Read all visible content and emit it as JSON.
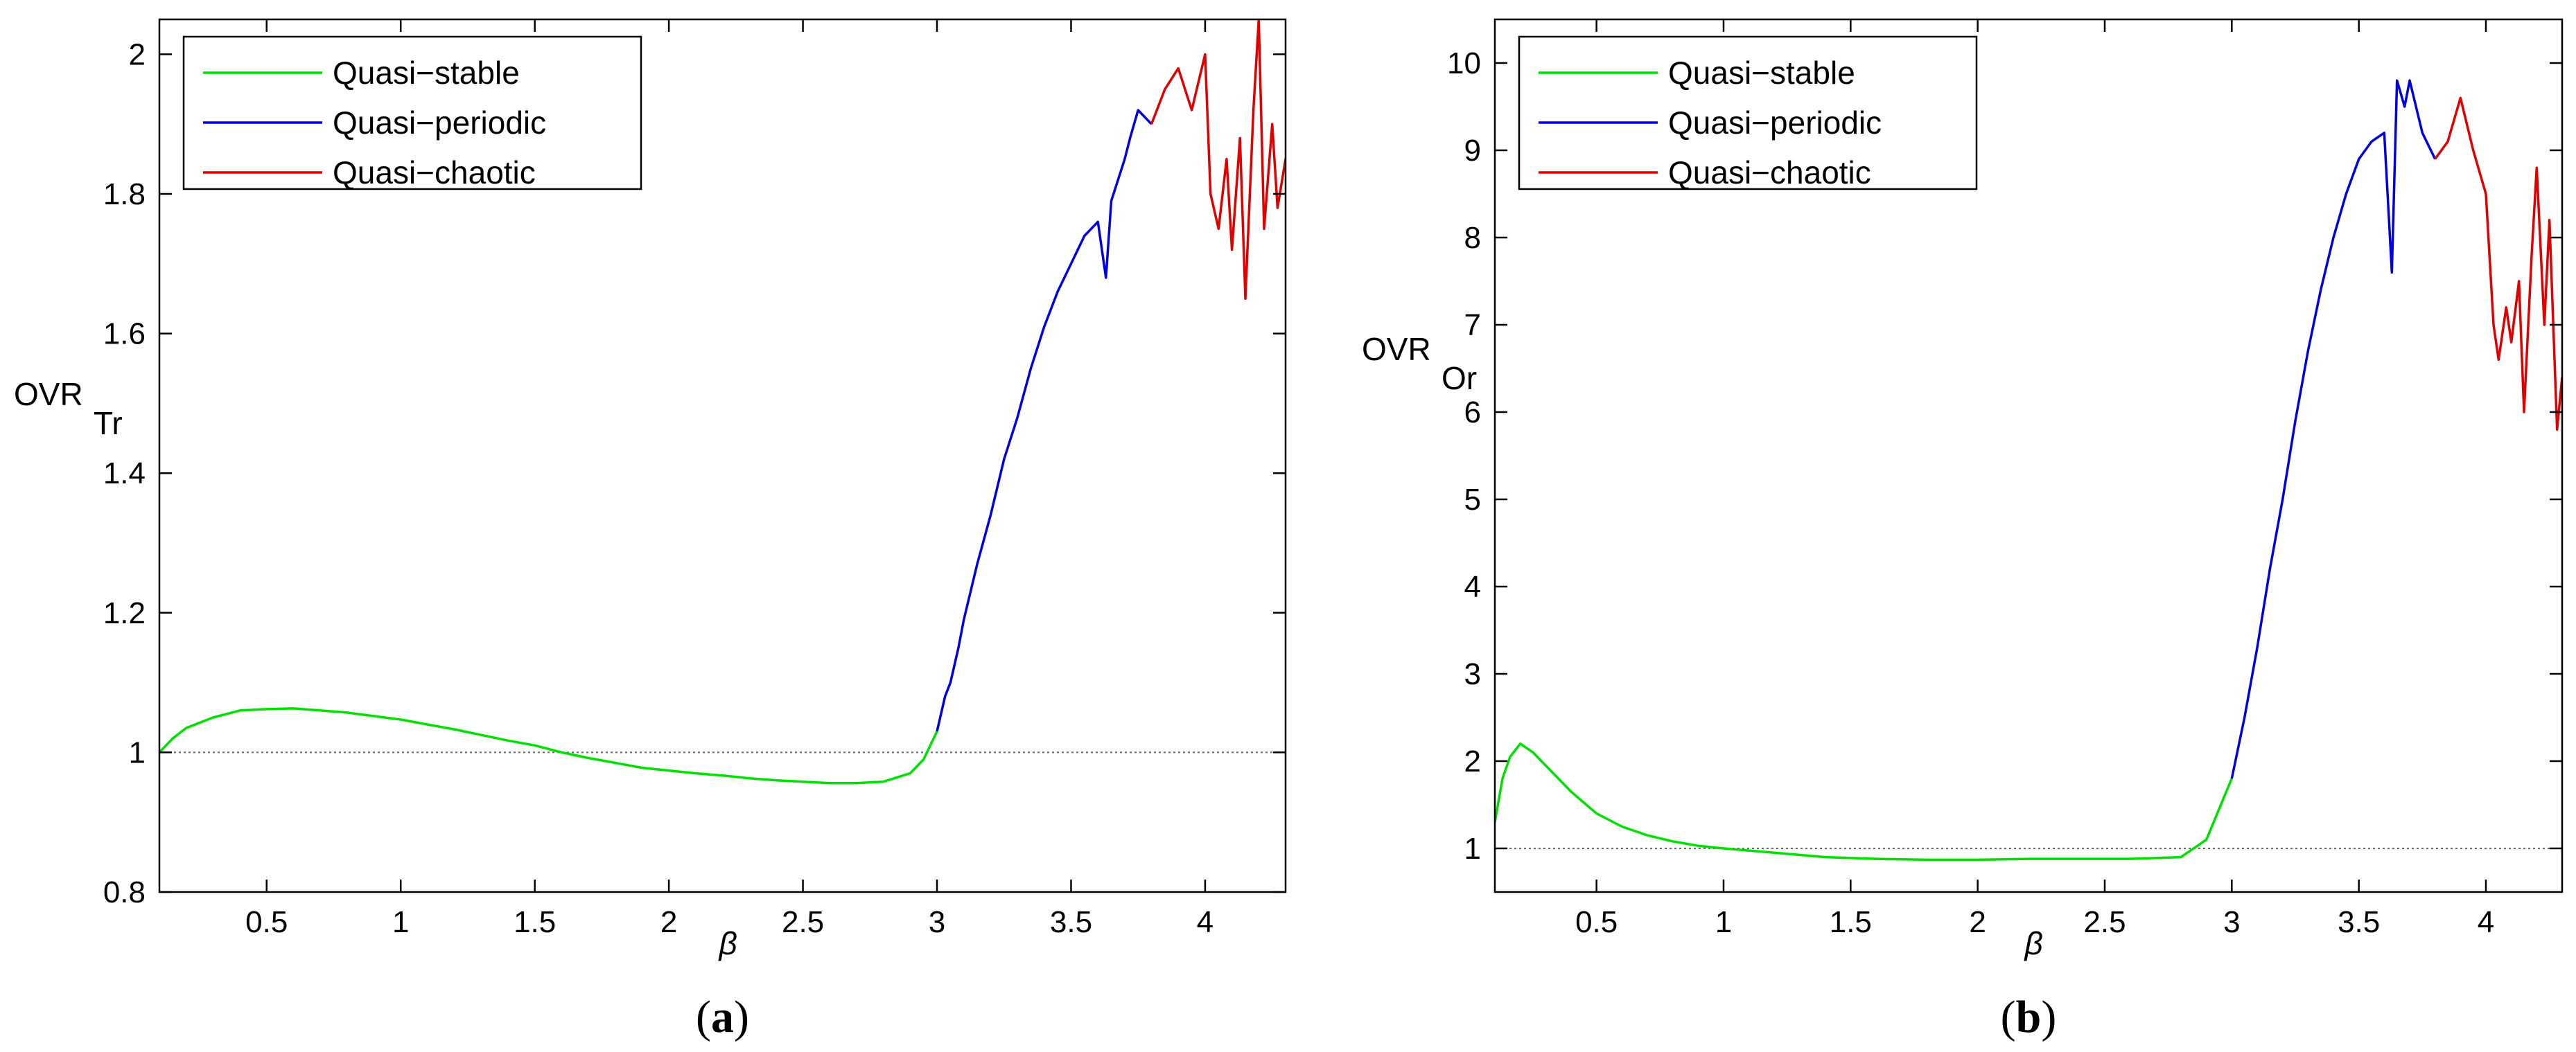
{
  "chart_data": [
    {
      "type": "line",
      "panel_label": "(a)",
      "panel_letter": "a",
      "xlabel": "β",
      "ylabel": "OVR",
      "ylabel_sub": "Tr",
      "xlim": [
        0.1,
        4.3
      ],
      "ylim": [
        0.8,
        2.05
      ],
      "xticks": [
        0.5,
        1,
        1.5,
        2,
        2.5,
        3,
        3.5,
        4
      ],
      "yticks": [
        0.8,
        1,
        1.2,
        1.4,
        1.6,
        1.8,
        2
      ],
      "reference_line": 1,
      "legend_position": "top-left",
      "series": [
        {
          "name": "Quasi−stable",
          "color": "#00e000",
          "x": [
            0.1,
            0.15,
            0.2,
            0.3,
            0.4,
            0.5,
            0.6,
            0.7,
            0.8,
            0.9,
            1.0,
            1.1,
            1.2,
            1.3,
            1.4,
            1.5,
            1.6,
            1.7,
            1.8,
            1.9,
            2.0,
            2.1,
            2.2,
            2.3,
            2.4,
            2.5,
            2.6,
            2.7,
            2.8,
            2.9,
            2.95,
            3.0
          ],
          "y": [
            1.0,
            1.02,
            1.035,
            1.05,
            1.06,
            1.062,
            1.063,
            1.06,
            1.057,
            1.052,
            1.047,
            1.04,
            1.033,
            1.025,
            1.017,
            1.01,
            1.0,
            0.992,
            0.985,
            0.978,
            0.974,
            0.97,
            0.967,
            0.963,
            0.96,
            0.958,
            0.956,
            0.956,
            0.958,
            0.97,
            0.99,
            1.03
          ]
        },
        {
          "name": "Quasi−periodic",
          "color": "#0000e0",
          "x": [
            3.0,
            3.03,
            3.05,
            3.08,
            3.1,
            3.15,
            3.2,
            3.25,
            3.3,
            3.35,
            3.4,
            3.45,
            3.5,
            3.55,
            3.6,
            3.63,
            3.65,
            3.7,
            3.72,
            3.75,
            3.8
          ],
          "y": [
            1.03,
            1.08,
            1.1,
            1.15,
            1.19,
            1.27,
            1.34,
            1.42,
            1.48,
            1.55,
            1.61,
            1.66,
            1.7,
            1.74,
            1.76,
            1.68,
            1.79,
            1.85,
            1.88,
            1.92,
            1.9
          ]
        },
        {
          "name": "Quasi−chaotic",
          "color": "#e00000",
          "x": [
            3.8,
            3.85,
            3.9,
            3.95,
            4.0,
            4.02,
            4.05,
            4.08,
            4.1,
            4.13,
            4.15,
            4.18,
            4.2,
            4.22,
            4.25,
            4.27,
            4.3
          ],
          "y": [
            1.9,
            1.95,
            1.98,
            1.92,
            2.0,
            1.8,
            1.75,
            1.85,
            1.72,
            1.88,
            1.65,
            1.92,
            2.05,
            1.75,
            1.9,
            1.78,
            1.85
          ]
        }
      ]
    },
    {
      "type": "line",
      "panel_label": "(b)",
      "panel_letter": "b",
      "xlabel": "β",
      "ylabel": "OVR",
      "ylabel_sub": "Or",
      "xlim": [
        0.1,
        4.3
      ],
      "ylim": [
        0.5,
        10.5
      ],
      "xticks": [
        0.5,
        1,
        1.5,
        2,
        2.5,
        3,
        3.5,
        4
      ],
      "yticks": [
        1,
        2,
        3,
        4,
        5,
        6,
        7,
        8,
        9,
        10
      ],
      "reference_line": 1,
      "legend_position": "top-left",
      "series": [
        {
          "name": "Quasi−stable",
          "color": "#00e000",
          "x": [
            0.1,
            0.13,
            0.16,
            0.2,
            0.25,
            0.3,
            0.4,
            0.5,
            0.6,
            0.7,
            0.8,
            0.9,
            1.0,
            1.2,
            1.4,
            1.6,
            1.8,
            2.0,
            2.2,
            2.4,
            2.6,
            2.8,
            2.9,
            3.0
          ],
          "y": [
            1.3,
            1.8,
            2.05,
            2.2,
            2.1,
            1.95,
            1.65,
            1.4,
            1.25,
            1.15,
            1.08,
            1.03,
            1.0,
            0.95,
            0.9,
            0.88,
            0.87,
            0.87,
            0.88,
            0.88,
            0.88,
            0.9,
            1.1,
            1.8
          ]
        },
        {
          "name": "Quasi−periodic",
          "color": "#0000e0",
          "x": [
            3.0,
            3.05,
            3.1,
            3.15,
            3.2,
            3.25,
            3.3,
            3.35,
            3.4,
            3.45,
            3.5,
            3.55,
            3.6,
            3.63,
            3.65,
            3.68,
            3.7,
            3.75,
            3.8
          ],
          "y": [
            1.8,
            2.5,
            3.3,
            4.2,
            5.0,
            5.9,
            6.7,
            7.4,
            8.0,
            8.5,
            8.9,
            9.1,
            9.2,
            7.6,
            9.8,
            9.5,
            9.8,
            9.2,
            8.9
          ]
        },
        {
          "name": "Quasi−chaotic",
          "color": "#e00000",
          "x": [
            3.8,
            3.85,
            3.9,
            3.95,
            4.0,
            4.03,
            4.05,
            4.08,
            4.1,
            4.13,
            4.15,
            4.18,
            4.2,
            4.23,
            4.25,
            4.28,
            4.3
          ],
          "y": [
            8.9,
            9.1,
            9.6,
            9.0,
            8.5,
            7.0,
            6.6,
            7.2,
            6.8,
            7.5,
            6.0,
            7.8,
            8.8,
            7.0,
            8.2,
            5.8,
            6.4
          ]
        }
      ]
    }
  ]
}
